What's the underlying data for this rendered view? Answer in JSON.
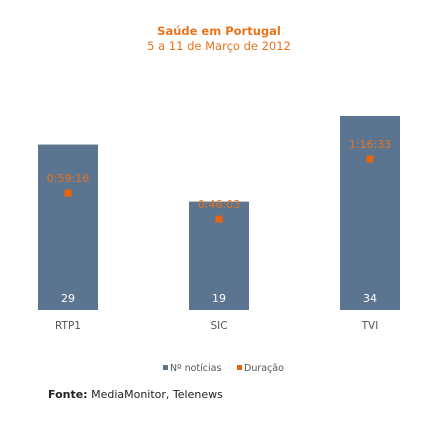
{
  "chart_data": {
    "type": "bar",
    "title": "Saúde em Portugal",
    "subtitle": "5 a 11 de Março de 2012",
    "categories": [
      "RTP1",
      "SIC",
      "TVI"
    ],
    "series": [
      {
        "name": "Nº notícias",
        "values": [
          29,
          19,
          34
        ],
        "labels": [
          "29",
          "19",
          "34"
        ],
        "color": "#5b7590"
      },
      {
        "name": "Duração",
        "values": [
          "0:59:16",
          "0:46:03",
          "1:16:33"
        ],
        "labels": [
          "0:59:16",
          "0:46:03",
          "1:16:33"
        ],
        "color": "#e8630a",
        "marker": "square"
      }
    ],
    "legend": "bottom"
  },
  "source": {
    "label": "Fonte:",
    "text": " MediaMonitor, Telenews"
  }
}
